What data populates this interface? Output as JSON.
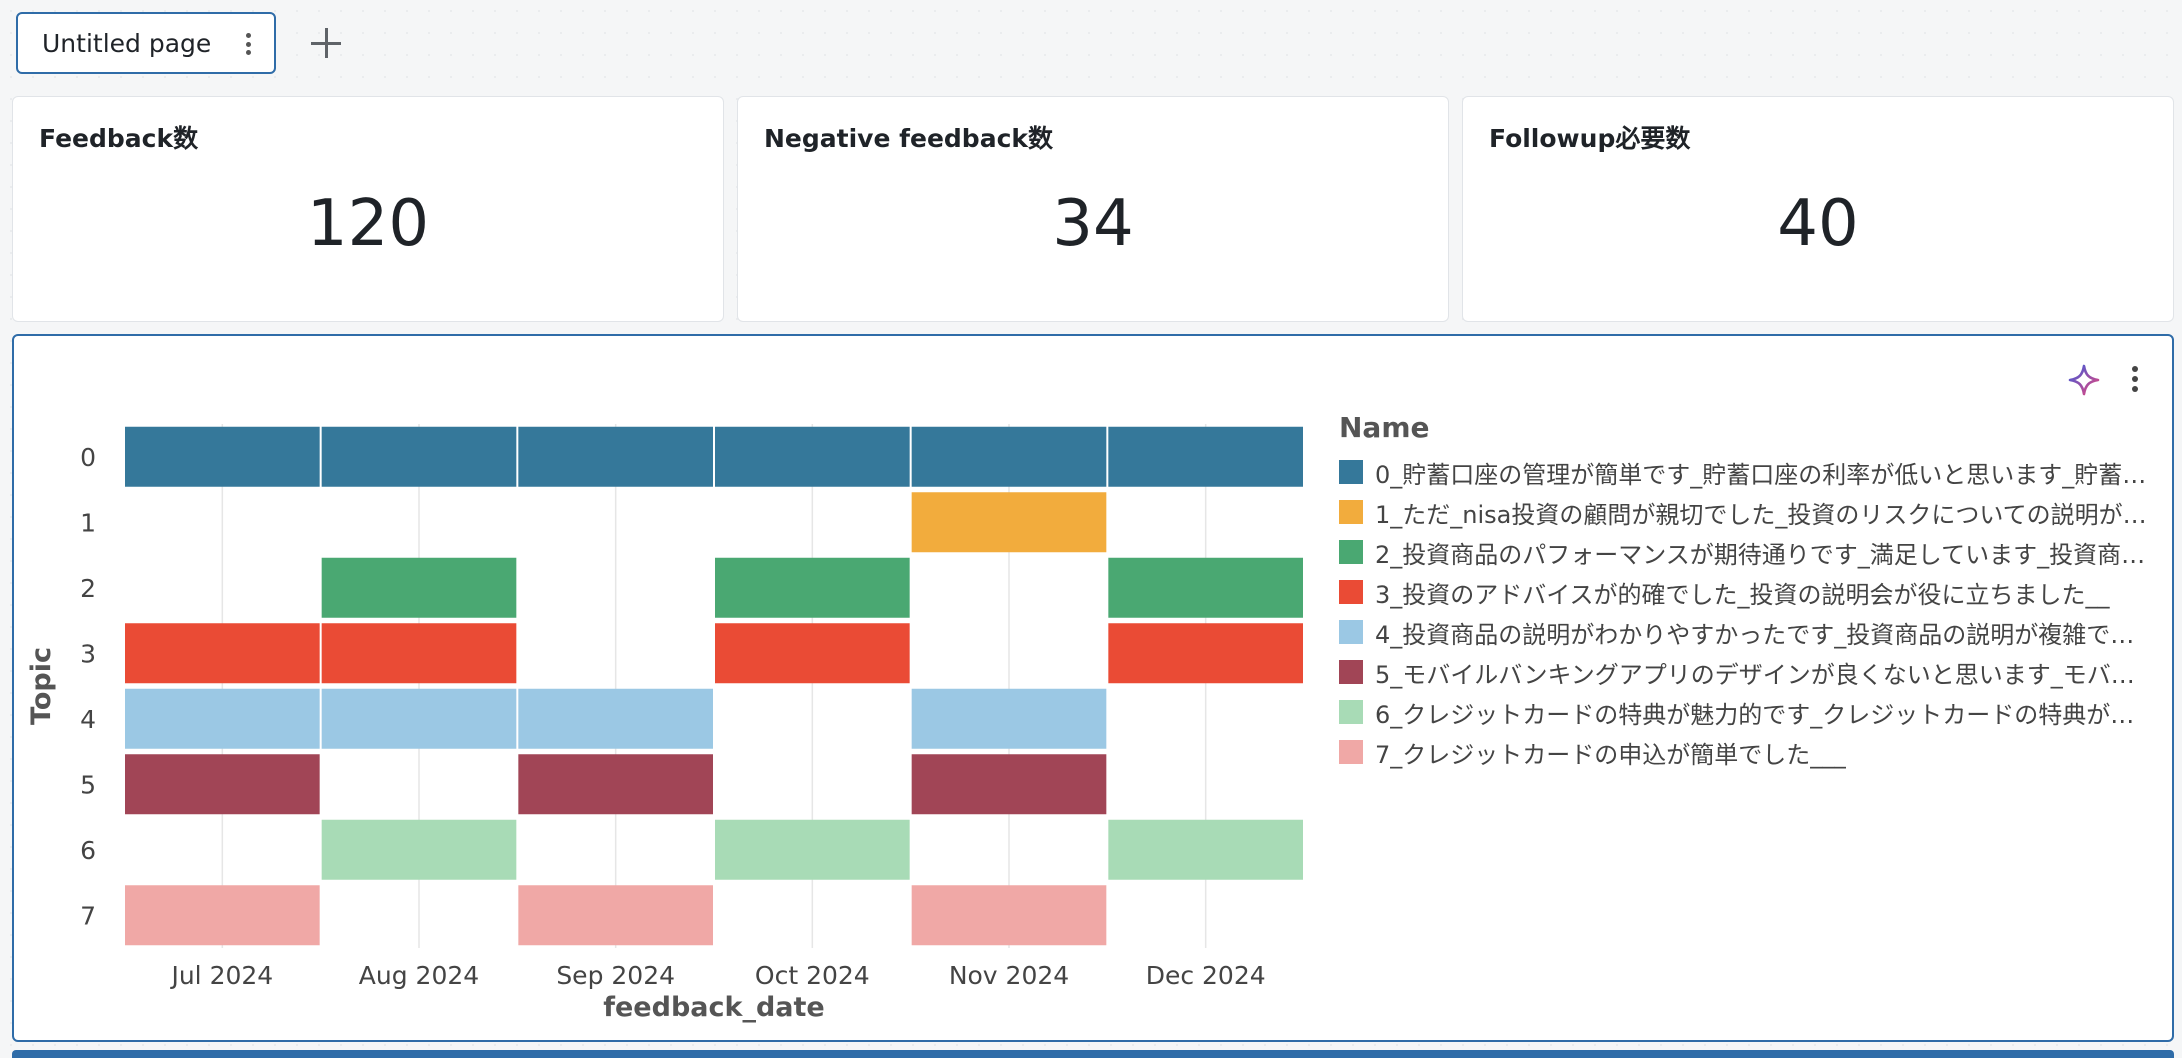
{
  "page_tab": {
    "label": "Untitled page"
  },
  "counters": [
    {
      "title": "Feedback数",
      "value": "120"
    },
    {
      "title": "Negative feedback数",
      "value": "34"
    },
    {
      "title": "Followup必要数",
      "value": "40"
    }
  ],
  "icons": {
    "assistant": "sparkle-icon",
    "more": "kebab-icon",
    "add": "plus-icon"
  },
  "chart_data": {
    "type": "heatmap",
    "xlabel": "feedback_date",
    "ylabel": "Topic",
    "x_categories": [
      "Jul 2024",
      "Aug 2024",
      "Sep 2024",
      "Oct 2024",
      "Nov 2024",
      "Dec 2024"
    ],
    "y_categories": [
      "0",
      "1",
      "2",
      "3",
      "4",
      "5",
      "6",
      "7"
    ],
    "legend_title": "Name",
    "legend_position": "right",
    "series": [
      {
        "topic": "0",
        "name": "0_貯蓄口座の管理が簡単です_貯蓄口座の利率が低いと思います_貯蓄…",
        "color": "#35789a",
        "present": [
          "Jul 2024",
          "Aug 2024",
          "Sep 2024",
          "Oct 2024",
          "Nov 2024",
          "Dec 2024"
        ]
      },
      {
        "topic": "1",
        "name": "1_ただ_nisa投資の顧問が親切でした_投資のリスクについての説明が…",
        "color": "#f2ac3d",
        "present": [
          "Nov 2024"
        ]
      },
      {
        "topic": "2",
        "name": "2_投資商品のパフォーマンスが期待通りです_満足しています_投資商…",
        "color": "#4aa872",
        "present": [
          "Aug 2024",
          "Oct 2024",
          "Dec 2024"
        ]
      },
      {
        "topic": "3",
        "name": "3_投資のアドバイスが的確でした_投資の説明会が役に立ちました__",
        "color": "#ea4b35",
        "present": [
          "Jul 2024",
          "Aug 2024",
          "Oct 2024",
          "Dec 2024"
        ]
      },
      {
        "topic": "4",
        "name": "4_投資商品の説明がわかりやすかったです_投資商品の説明が複雑です…",
        "color": "#9bc8e4",
        "present": [
          "Jul 2024",
          "Aug 2024",
          "Sep 2024",
          "Nov 2024"
        ]
      },
      {
        "topic": "5",
        "name": "5_モバイルバンキングアプリのデザインが良くないと思います_モバイ…",
        "color": "#a14556",
        "present": [
          "Jul 2024",
          "Sep 2024",
          "Nov 2024"
        ]
      },
      {
        "topic": "6",
        "name": "6_クレジットカードの特典が魅力的です_クレジットカードの特典が豊…",
        "color": "#a8dbb6",
        "present": [
          "Aug 2024",
          "Oct 2024",
          "Dec 2024"
        ]
      },
      {
        "topic": "7",
        "name": "7_クレジットカードの申込が簡単でした___",
        "color": "#f0a8a6",
        "present": [
          "Jul 2024",
          "Sep 2024",
          "Nov 2024"
        ]
      }
    ]
  }
}
